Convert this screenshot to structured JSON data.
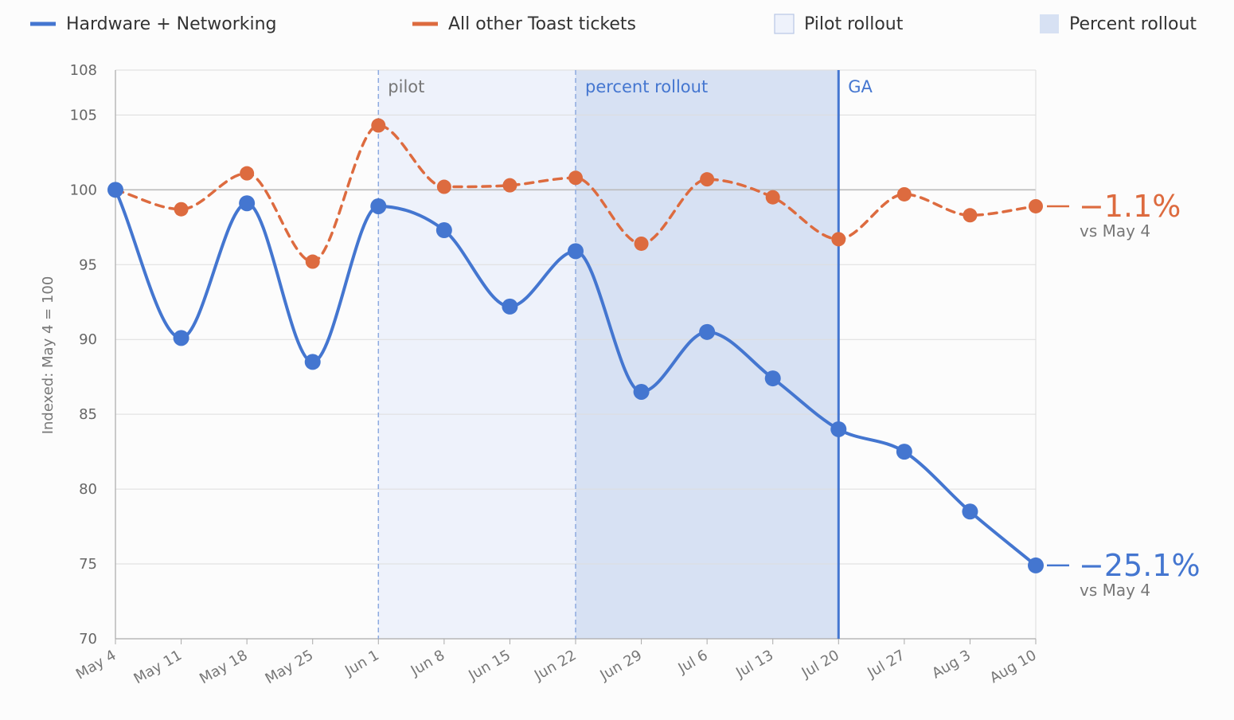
{
  "colors": {
    "hardware": "#4476d0",
    "other": "#dd6b3f",
    "pilot_fill": "#eef2fb",
    "percent_fill": "#d7e1f3",
    "pilot_line": "#8eaae0",
    "ga_line": "#4476d0",
    "grid": "#dddddd",
    "baseline": "#bbbbbb",
    "axis": "#aaaaaa"
  },
  "legend": [
    {
      "key": "hardware",
      "label": "Hardware + Networking",
      "kind": "line"
    },
    {
      "key": "other",
      "label": "All other Toast tickets",
      "kind": "line"
    },
    {
      "key": "pilot",
      "label": "Pilot rollout",
      "kind": "box"
    },
    {
      "key": "percent",
      "label": "Percent rollout",
      "kind": "box"
    }
  ],
  "chart_data": {
    "type": "line",
    "ylabel": "Indexed: May 4 = 100",
    "ylim": [
      70,
      108
    ],
    "yticks": [
      70,
      75,
      80,
      85,
      90,
      95,
      100,
      105,
      108
    ],
    "baseline": 100,
    "categories": [
      "May 4",
      "May 11",
      "May 18",
      "May 25",
      "Jun 1",
      "Jun 8",
      "Jun 15",
      "Jun 22",
      "Jun 29",
      "Jul 6",
      "Jul 13",
      "Jul 20",
      "Jul 27",
      "Aug 3",
      "Aug 10"
    ],
    "series": [
      {
        "key": "hardware",
        "name": "Hardware + Networking",
        "style": "solid",
        "values": [
          100,
          90.1,
          99.1,
          88.5,
          98.9,
          97.3,
          92.2,
          95.9,
          86.5,
          90.5,
          87.4,
          84.0,
          82.5,
          78.5,
          74.9
        ],
        "end_label": "−25.1%",
        "end_sub": "vs May 4"
      },
      {
        "key": "other",
        "name": "All other Toast tickets",
        "style": "dashed",
        "values": [
          100,
          98.7,
          101.1,
          95.2,
          104.3,
          100.2,
          100.3,
          100.8,
          96.4,
          100.7,
          99.5,
          96.7,
          99.7,
          98.3,
          98.9
        ],
        "end_label": "−1.1%",
        "end_sub": "vs May 4"
      }
    ],
    "regions": [
      {
        "key": "pilot",
        "label": "pilot",
        "start": "Jun 1",
        "end": "Jun 22"
      },
      {
        "key": "percent",
        "label": "percent rollout",
        "start": "Jun 22",
        "end": "Jul 20"
      }
    ],
    "markers": [
      {
        "key": "ga",
        "label": "GA",
        "at": "Jul 20"
      }
    ]
  }
}
